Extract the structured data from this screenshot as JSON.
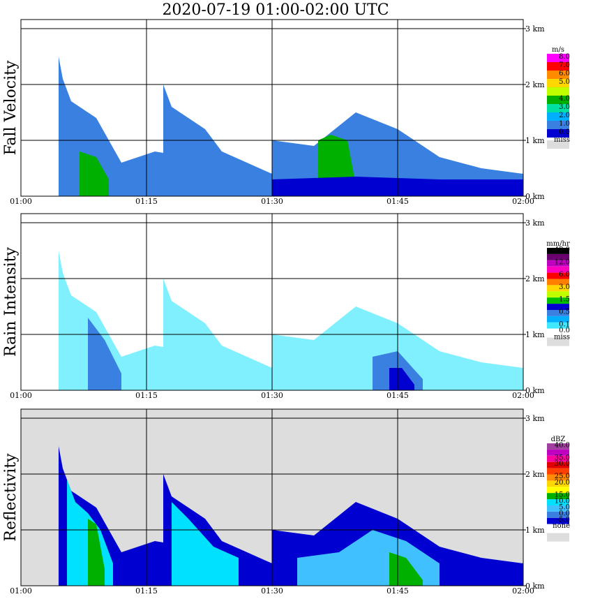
{
  "title": "2020-07-19   01:00-02:00 UTC",
  "x_ticks": [
    "01:00",
    "01:15",
    "01:30",
    "01:45",
    "02:00"
  ],
  "y_ticks": [
    "0 km",
    "1 km",
    "2 km",
    "3 km"
  ],
  "chart_data": [
    {
      "type": "heatmap",
      "ylabel": "Fall Velocity",
      "xlim": [
        "01:00",
        "02:00"
      ],
      "ylim_km": [
        0,
        3.0
      ],
      "grid": true,
      "colorbar": {
        "unit": "m/s",
        "levels": [
          {
            "label": "8.0",
            "color": "#ff00ff"
          },
          {
            "label": "7.0",
            "color": "#ff0000"
          },
          {
            "label": "6.0",
            "color": "#ff8c00"
          },
          {
            "label": "5.0",
            "color": "#ffd700"
          },
          {
            "label": "",
            "color": "#c0ff00"
          },
          {
            "label": "4.0",
            "color": "#00b000"
          },
          {
            "label": "3.0",
            "color": "#00e0a0"
          },
          {
            "label": "2.0",
            "color": "#00b0ff"
          },
          {
            "label": "1.0",
            "color": "#3a80e0"
          },
          {
            "label": "0.0",
            "color": "#0000d0"
          }
        ],
        "missing_label": "miss",
        "missing_color": "#dddddd"
      },
      "background": "#ffffff",
      "echoes": [
        {
          "x": [
            4.5,
            5.0,
            6.0,
            7.0,
            8.0,
            9.0,
            10.5,
            12.0
          ],
          "top": [
            2.5,
            2.1,
            1.7,
            1.6,
            1.5,
            1.4,
            1.0,
            0.6
          ],
          "fill": "#3a80e0"
        },
        {
          "x": [
            12.0,
            16.0,
            20.0,
            24.0,
            28.0,
            30.0
          ],
          "top": [
            0.6,
            0.8,
            0.7,
            0.6,
            0.5,
            0.4
          ],
          "fill": "#3a80e0"
        },
        {
          "x": [
            17.0,
            18.0,
            20.0,
            22.0,
            24.0,
            27.0,
            30.0
          ],
          "top": [
            2.0,
            1.6,
            1.4,
            1.2,
            0.8,
            0.6,
            0.4
          ],
          "fill": "#3a80e0"
        },
        {
          "x": [
            30.0,
            35.0,
            40.0,
            45.0,
            50.0,
            55.0,
            60.0
          ],
          "top": [
            1.0,
            0.9,
            1.5,
            1.2,
            0.7,
            0.5,
            0.4
          ],
          "fill": "#3a80e0"
        },
        {
          "x": [
            7.0,
            9.0,
            10.5
          ],
          "top": [
            0.8,
            0.7,
            0.3
          ],
          "fill": "#00b000"
        },
        {
          "x": [
            35.5,
            37.0,
            39.0,
            40.0
          ],
          "top": [
            1.0,
            1.1,
            1.0,
            0.2
          ],
          "fill": "#00b000"
        },
        {
          "x": [
            30.0,
            40.0,
            50.0,
            60.0
          ],
          "top": [
            0.3,
            0.35,
            0.3,
            0.3
          ],
          "fill": "#0000d0"
        }
      ]
    },
    {
      "type": "heatmap",
      "ylabel": "Rain Intensity",
      "xlim": [
        "01:00",
        "02:00"
      ],
      "ylim_km": [
        0,
        3.0
      ],
      "grid": true,
      "colorbar": {
        "unit": "mm/hr",
        "levels": [
          {
            "label": "48.0",
            "color": "#000000"
          },
          {
            "label": "",
            "color": "#6a0070"
          },
          {
            "label": "12.0",
            "color": "#c000c0"
          },
          {
            "label": "",
            "color": "#ff00c0"
          },
          {
            "label": "6.0",
            "color": "#ff0000"
          },
          {
            "label": "",
            "color": "#ff8000"
          },
          {
            "label": "3.0",
            "color": "#ffd700"
          },
          {
            "label": "",
            "color": "#c0ff00"
          },
          {
            "label": "1.5",
            "color": "#00c000"
          },
          {
            "label": "",
            "color": "#0000d0"
          },
          {
            "label": "0.5",
            "color": "#3a80e0"
          },
          {
            "label": "",
            "color": "#00b0ff"
          },
          {
            "label": "0.1",
            "color": "#40e8ff"
          },
          {
            "label": "0.0",
            "color": "#ffffff"
          }
        ],
        "missing_label": "miss",
        "missing_color": "#dddddd"
      },
      "background": "#ffffff",
      "echoes": [
        {
          "x": [
            4.5,
            5.0,
            6.0,
            7.0,
            8.0,
            9.0,
            10.5,
            12.0
          ],
          "top": [
            2.5,
            2.1,
            1.7,
            1.6,
            1.5,
            1.4,
            1.0,
            0.6
          ],
          "fill": "#80f0ff"
        },
        {
          "x": [
            12.0,
            16.0,
            20.0,
            24.0,
            28.0,
            30.0
          ],
          "top": [
            0.6,
            0.8,
            0.7,
            0.6,
            0.5,
            0.4
          ],
          "fill": "#80f0ff"
        },
        {
          "x": [
            17.0,
            18.0,
            20.0,
            22.0,
            24.0,
            27.0,
            30.0
          ],
          "top": [
            2.0,
            1.6,
            1.4,
            1.2,
            0.8,
            0.6,
            0.4
          ],
          "fill": "#80f0ff"
        },
        {
          "x": [
            30.0,
            35.0,
            40.0,
            45.0,
            50.0,
            55.0,
            60.0
          ],
          "top": [
            1.0,
            0.9,
            1.5,
            1.2,
            0.7,
            0.5,
            0.4
          ],
          "fill": "#80f0ff"
        },
        {
          "x": [
            8.0,
            10.0,
            12.0
          ],
          "top": [
            1.3,
            0.9,
            0.3
          ],
          "fill": "#3a80e0"
        },
        {
          "x": [
            42.0,
            45.0,
            48.0
          ],
          "top": [
            0.6,
            0.7,
            0.2
          ],
          "fill": "#3a80e0"
        },
        {
          "x": [
            44.0,
            45.5,
            47.0
          ],
          "top": [
            0.4,
            0.4,
            0.1
          ],
          "fill": "#0000d0"
        }
      ]
    },
    {
      "type": "heatmap",
      "ylabel": "Reflectivity",
      "xlim": [
        "01:00",
        "02:00"
      ],
      "ylim_km": [
        0,
        3.0
      ],
      "grid": true,
      "colorbar": {
        "unit": "dBZ",
        "levels": [
          {
            "label": "40.0",
            "color": "#a040a0"
          },
          {
            "label": "",
            "color": "#c000c0"
          },
          {
            "label": "35.0",
            "color": "#ff00a0"
          },
          {
            "label": "30.0",
            "color": "#e00000"
          },
          {
            "label": "",
            "color": "#ff4000"
          },
          {
            "label": "25.0",
            "color": "#ff8c00"
          },
          {
            "label": "20.0",
            "color": "#ffd700"
          },
          {
            "label": "",
            "color": "#ffff00"
          },
          {
            "label": "15.0",
            "color": "#00b000"
          },
          {
            "label": "10.0",
            "color": "#00e0ff"
          },
          {
            "label": "5.0",
            "color": "#40c0ff"
          },
          {
            "label": "0.0",
            "color": "#3a80e0"
          },
          {
            "label": "-5.0",
            "color": "#0000d0"
          },
          {
            "label": "none",
            "color": "#ffffff"
          }
        ],
        "missing_label": "",
        "missing_color": "#dddddd"
      },
      "background": "#dddddd",
      "echoes": [
        {
          "x": [
            4.5,
            5.0,
            6.0,
            7.0,
            8.0,
            9.0,
            10.5,
            12.0
          ],
          "top": [
            2.5,
            2.1,
            1.7,
            1.6,
            1.5,
            1.4,
            1.0,
            0.6
          ],
          "fill": "#0000d0"
        },
        {
          "x": [
            12.0,
            16.0,
            20.0,
            24.0,
            28.0,
            30.0
          ],
          "top": [
            0.6,
            0.8,
            0.7,
            0.6,
            0.5,
            0.4
          ],
          "fill": "#0000d0"
        },
        {
          "x": [
            17.0,
            18.0,
            20.0,
            22.0,
            24.0,
            27.0,
            30.0
          ],
          "top": [
            2.0,
            1.6,
            1.4,
            1.2,
            0.8,
            0.6,
            0.4
          ],
          "fill": "#0000d0"
        },
        {
          "x": [
            30.0,
            35.0,
            40.0,
            45.0,
            50.0,
            55.0,
            60.0
          ],
          "top": [
            1.0,
            0.9,
            1.5,
            1.2,
            0.7,
            0.5,
            0.4
          ],
          "fill": "#0000d0"
        },
        {
          "x": [
            5.5,
            6.5,
            8.0,
            9.5,
            11.0
          ],
          "top": [
            1.9,
            1.5,
            1.3,
            1.0,
            0.4
          ],
          "fill": "#00e0ff"
        },
        {
          "x": [
            18.0,
            20.0,
            23.0,
            26.0
          ],
          "top": [
            1.5,
            1.2,
            0.7,
            0.5
          ],
          "fill": "#00e0ff"
        },
        {
          "x": [
            33.0,
            38.0,
            42.0,
            46.0,
            50.0
          ],
          "top": [
            0.5,
            0.6,
            1.0,
            0.8,
            0.4
          ],
          "fill": "#40c0ff"
        },
        {
          "x": [
            8.0,
            9.0,
            10.0
          ],
          "top": [
            1.2,
            1.1,
            0.3
          ],
          "fill": "#00b000"
        },
        {
          "x": [
            44.0,
            46.0,
            48.0
          ],
          "top": [
            0.6,
            0.5,
            0.1
          ],
          "fill": "#00b000"
        }
      ]
    }
  ]
}
